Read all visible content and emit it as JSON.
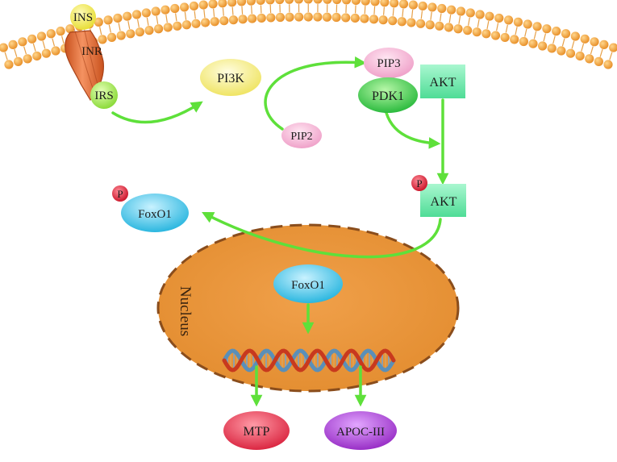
{
  "labels": {
    "ins": "INS",
    "inr": "INR",
    "irs": "IRS",
    "pi3k": "PI3K",
    "pip3": "PIP3",
    "pip2": "PIP2",
    "pdk1": "PDK1",
    "akt_membrane": "AKT",
    "akt_phospho": "AKT",
    "phospho_p_akt": "P",
    "phospho_p_foxo1": "P",
    "foxo1_cytoplasm": "FoxO1",
    "foxo1_nucleus": "FoxO1",
    "nucleus": "Nucleus",
    "mtp": "MTP",
    "apoc3": "APOC-III"
  },
  "colors": {
    "arrow": "#5ee03a",
    "membrane_head": "#f2a23c",
    "nucleus": "#e8953a",
    "receptor": "#e8763e",
    "ins": "#f3ee5a",
    "irs": "#a6ec55",
    "pi3k": "#f4ee74",
    "pip": "#f5b3d4",
    "pdk1": "#3ccf4a",
    "akt": "#6fe6ad",
    "foxo1": "#39c4e8",
    "phospho": "#e0203a",
    "mtp": "#e43a52",
    "apoc3": "#a540cc",
    "dna_red": "#c8391e",
    "dna_blue": "#5a8fb8"
  }
}
